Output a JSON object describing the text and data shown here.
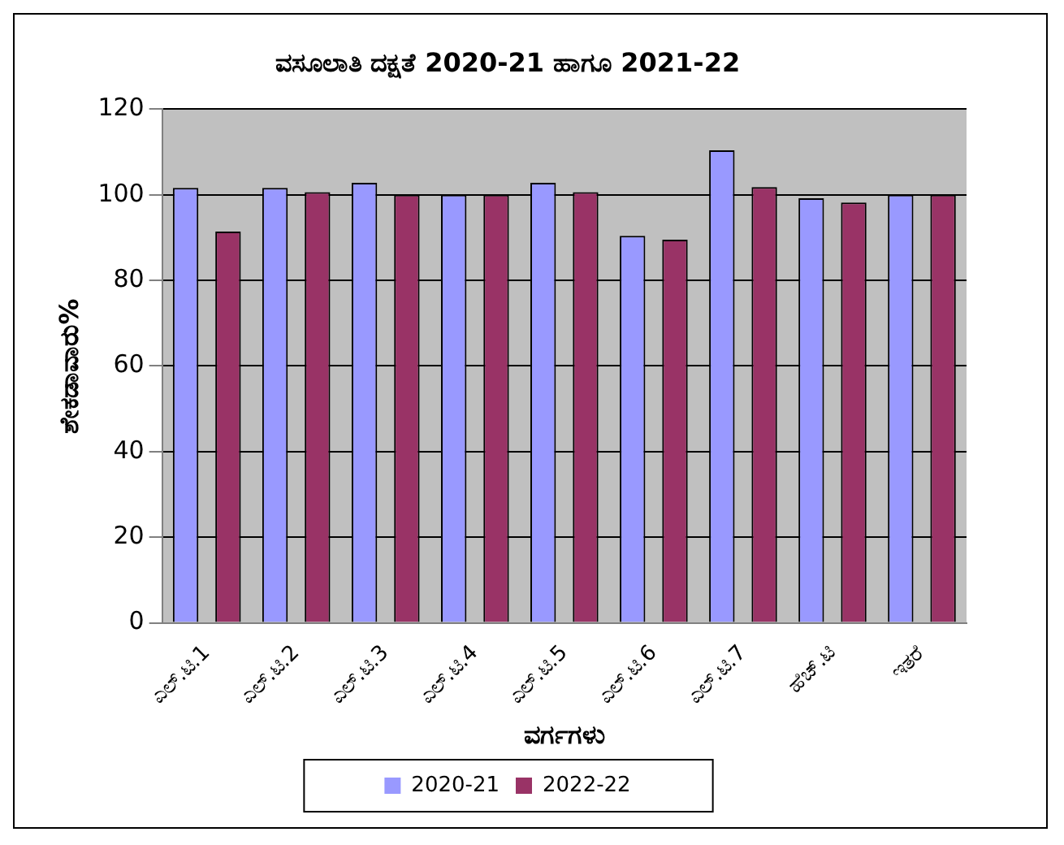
{
  "chart_data": {
    "type": "bar",
    "title": "ವಸೂಲಾತಿ ದಕ್ಷತೆ 2020-21 ಹಾಗೂ 2021-22",
    "xlabel": "ವರ್ಗಗಳು",
    "ylabel": "ಶೇಕಡಾವಾರು%",
    "categories": [
      "ಎಲ್.ಟಿ.1",
      "ಎಲ್.ಟಿ.2",
      "ಎಲ್.ಟಿ.3",
      "ಎಲ್.ಟಿ.4",
      "ಎಲ್.ಟಿ.5",
      "ಎಲ್.ಟಿ.6",
      "ಎಲ್.ಟಿ.7",
      "ಹೆಚ್.ಟಿ",
      "ಇತರೆ"
    ],
    "series": [
      {
        "name": "2020-21",
        "color": "#9999ff",
        "values": [
          101.6,
          101.6,
          102.8,
          100,
          102.8,
          90.4,
          110.4,
          99.2,
          100
        ]
      },
      {
        "name": "2022-22",
        "color": "#993366",
        "values": [
          91.4,
          100.6,
          100,
          100,
          100.6,
          89.5,
          101.8,
          98.2,
          100
        ]
      }
    ],
    "ylim": [
      0,
      120
    ],
    "yticks": [
      0,
      20,
      40,
      60,
      80,
      100,
      120
    ],
    "grid": "y",
    "legend": "bottom"
  }
}
